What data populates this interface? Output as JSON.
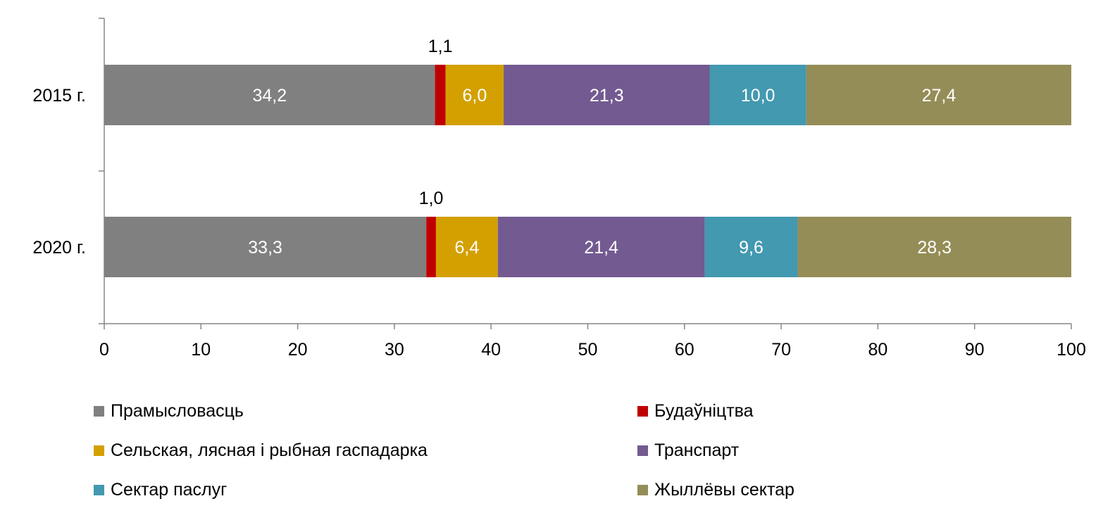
{
  "chart_data": {
    "type": "bar",
    "orientation": "horizontal",
    "stacked": true,
    "categories": [
      "2015 г.",
      "2020 г."
    ],
    "series": [
      {
        "name": "Прамысловасць",
        "color": "#808080",
        "values": [
          34.2,
          33.3
        ],
        "labels": [
          "34,2",
          "33,3"
        ]
      },
      {
        "name": "Будаўніцтва",
        "color": "#c00000",
        "values": [
          1.1,
          1.0
        ],
        "labels": [
          "1,1",
          "1,0"
        ]
      },
      {
        "name": "Сельская, лясная і рыбная гаспадарка",
        "color": "#d4a000",
        "values": [
          6.0,
          6.4
        ],
        "labels": [
          "6,0",
          "6,4"
        ]
      },
      {
        "name": "Транспарт",
        "color": "#735a91",
        "values": [
          21.3,
          21.4
        ],
        "labels": [
          "21,3",
          "21,4"
        ]
      },
      {
        "name": "Сектар паслуг",
        "color": "#4299b0",
        "values": [
          10.0,
          9.6
        ],
        "labels": [
          "10,0",
          "9,6"
        ]
      },
      {
        "name": "Жыллёвы сектар",
        "color": "#958d57",
        "values": [
          27.4,
          28.3
        ],
        "labels": [
          "27,4",
          "28,3"
        ]
      }
    ],
    "xlim": [
      0,
      100
    ],
    "xticks": [
      "0",
      "10",
      "20",
      "30",
      "40",
      "50",
      "60",
      "70",
      "80",
      "90",
      "100"
    ],
    "xlabel": "",
    "ylabel": "",
    "grid": false,
    "legend_position": "bottom"
  }
}
